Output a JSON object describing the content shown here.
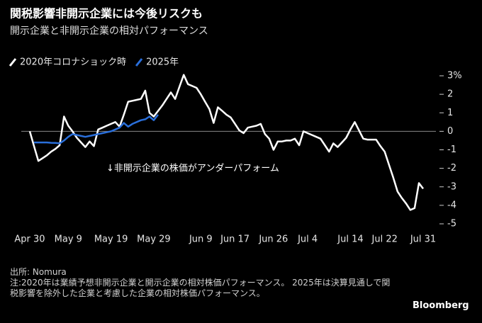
{
  "chart_data": {
    "type": "line",
    "title": "関税影響非開示企業には今後リスクも",
    "subtitle": "開示企業と非開示企業の相対パフォーマンス",
    "annotation": "↓非開示企業の株価がアンダーパフォーム",
    "source": "出所: Nomura",
    "note": "注:2020年は業績予想非開示企業と開示企業の相対株価パフォーマンス。 2025年は決算見通しで関税影響を除外した企業と考慮した企業の相対株価パフォーマンス。",
    "brand": "Bloomberg",
    "categories": [
      "Apr 30",
      null,
      null,
      null,
      null,
      null,
      null,
      null,
      null,
      "May 9",
      null,
      null,
      null,
      null,
      null,
      null,
      null,
      null,
      null,
      "May 19",
      null,
      null,
      null,
      null,
      null,
      null,
      null,
      null,
      null,
      "May 29",
      null,
      null,
      null,
      null,
      null,
      null,
      null,
      null,
      null,
      null,
      "Jun 9",
      null,
      null,
      null,
      null,
      null,
      null,
      null,
      "Jun 17",
      null,
      null,
      null,
      null,
      null,
      null,
      null,
      null,
      "Jun 26",
      null,
      null,
      null,
      null,
      null,
      null,
      null,
      "Jul 4",
      null,
      null,
      null,
      null,
      null,
      null,
      null,
      null,
      null,
      "Jul 14",
      null,
      null,
      null,
      null,
      null,
      null,
      null,
      "Jul 22",
      null,
      null,
      null,
      null,
      null,
      null,
      null,
      null,
      "Jul 31"
    ],
    "series": [
      {
        "name": "2020年コロナショック時",
        "color": "#ffffff",
        "values": [
          0,
          -0.8,
          -1.6,
          -1.45,
          -1.3,
          -1.1,
          -0.95,
          -0.75,
          0.8,
          0.3,
          0,
          -0.35,
          -0.6,
          -0.85,
          -0.55,
          -0.8,
          0.1,
          0.2,
          0.3,
          0.4,
          0.5,
          0.25,
          0.9,
          1.6,
          1.65,
          1.7,
          1.75,
          2.2,
          1.0,
          0.8,
          1.1,
          1.4,
          1.75,
          2.1,
          1.75,
          2.4,
          3.05,
          2.55,
          2.45,
          2.35,
          2.0,
          1.6,
          1.2,
          0.45,
          1.3,
          1.1,
          0.9,
          0.75,
          0.4,
          0.05,
          -0.1,
          0.2,
          0.25,
          0.3,
          0.4,
          -0.15,
          -0.4,
          -1.0,
          -0.55,
          -0.55,
          -0.5,
          -0.5,
          -0.4,
          -0.75,
          0,
          -0.1,
          -0.2,
          -0.3,
          -0.4,
          -0.75,
          -1.1,
          -0.65,
          -0.85,
          -0.6,
          -0.35,
          0.1,
          0.5,
          0.05,
          -0.4,
          -0.45,
          -0.45,
          -0.45,
          -0.8,
          -1.1,
          -1.8,
          -2.5,
          -3.25,
          -3.6,
          -3.9,
          -4.25,
          -4.15,
          -2.8,
          -3.1
        ]
      },
      {
        "name": "2025年",
        "color": "#2a6fdb",
        "values": [
          null,
          -0.6,
          -0.6,
          -0.6,
          -0.6,
          -0.62,
          -0.63,
          -0.65,
          -0.5,
          -0.3,
          -0.15,
          -0.2,
          -0.25,
          -0.3,
          -0.25,
          -0.2,
          -0.15,
          -0.1,
          -0.05,
          0,
          0.1,
          0.2,
          0.45,
          0.25,
          0.4,
          0.5,
          0.6,
          0.65,
          0.8,
          0.6,
          0.9,
          null,
          null,
          null,
          null,
          null,
          null,
          null,
          null,
          null,
          null,
          null,
          null,
          null,
          null,
          null,
          null,
          null,
          null,
          null,
          null,
          null,
          null,
          null,
          null,
          null,
          null,
          null,
          null,
          null,
          null,
          null,
          null,
          null,
          null,
          null,
          null,
          null,
          null,
          null,
          null,
          null,
          null,
          null,
          null,
          null,
          null,
          null,
          null,
          null,
          null,
          null,
          null,
          null,
          null,
          null,
          null,
          null,
          null,
          null,
          null,
          null,
          null
        ]
      }
    ],
    "ylim": [
      -5,
      3
    ],
    "yticks": [
      {
        "value": 3,
        "label": "3%"
      },
      2,
      1,
      0,
      -1,
      -2,
      -3,
      -4,
      -5
    ],
    "zero_line": true
  }
}
